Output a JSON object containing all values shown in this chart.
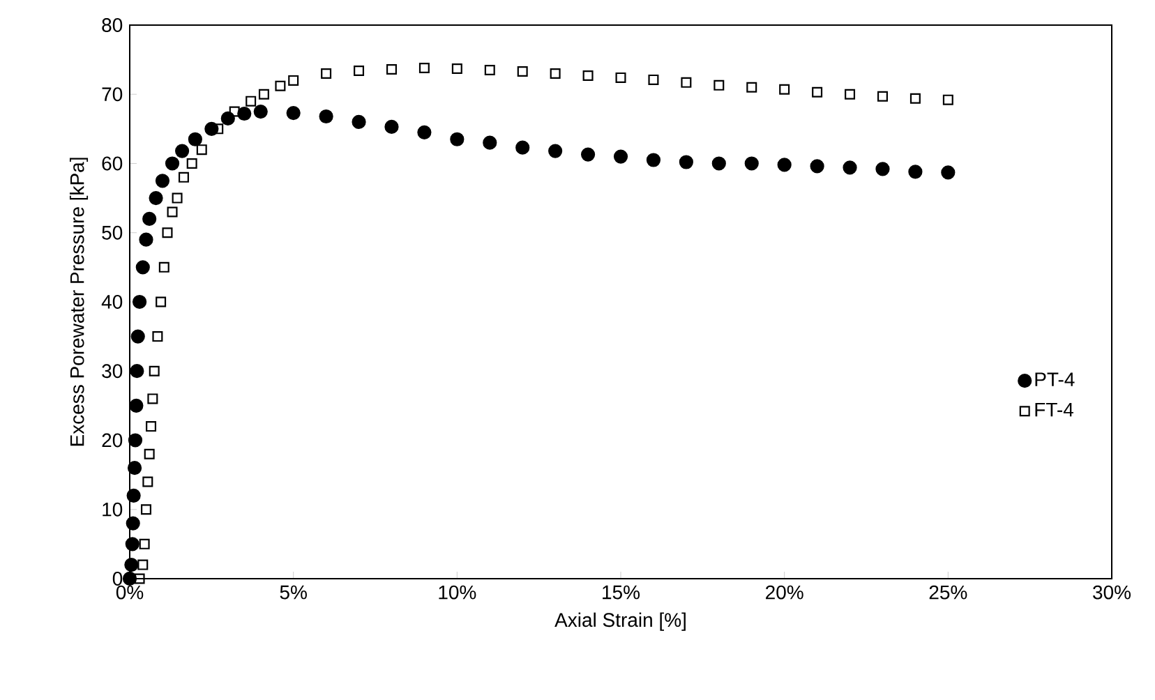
{
  "chart_data": {
    "type": "scatter",
    "xlabel": "Axial Strain [%]",
    "ylabel": "Excess Porewater Pressure [kPa]",
    "xlim": [
      0,
      30
    ],
    "ylim": [
      0,
      80
    ],
    "xticks": [
      {
        "value": 0,
        "label": "0%"
      },
      {
        "value": 5,
        "label": "5%"
      },
      {
        "value": 10,
        "label": "10%"
      },
      {
        "value": 15,
        "label": "15%"
      },
      {
        "value": 20,
        "label": "20%"
      },
      {
        "value": 25,
        "label": "25%"
      },
      {
        "value": 30,
        "label": "30%"
      }
    ],
    "yticks": [
      0,
      10,
      20,
      30,
      40,
      50,
      60,
      70,
      80
    ],
    "legend": "right",
    "grid": false,
    "series": [
      {
        "name": "PT-4",
        "color": "#000000",
        "marker": "circle",
        "x": [
          0,
          0.05,
          0.08,
          0.1,
          0.12,
          0.15,
          0.17,
          0.2,
          0.22,
          0.25,
          0.3,
          0.4,
          0.5,
          0.6,
          0.8,
          1.0,
          1.3,
          1.6,
          2.0,
          2.5,
          3.0,
          3.5,
          4.0,
          5,
          6,
          7,
          8,
          9,
          10,
          11,
          12,
          13,
          14,
          15,
          16,
          17,
          18,
          19,
          20,
          21,
          22,
          23,
          24,
          25
        ],
        "values": [
          0,
          2,
          5,
          8,
          12,
          16,
          20,
          25,
          30,
          35,
          40,
          45,
          49,
          52,
          55,
          57.5,
          60,
          61.8,
          63.5,
          65,
          66.5,
          67.2,
          67.5,
          67.3,
          66.8,
          66,
          65.3,
          64.5,
          63.5,
          63,
          62.3,
          61.8,
          61.3,
          61,
          60.5,
          60.2,
          60,
          60,
          59.8,
          59.6,
          59.4,
          59.2,
          58.8,
          58.7
        ]
      },
      {
        "name": "FT-4",
        "color": "#000000",
        "marker": "square",
        "x": [
          0.3,
          0.4,
          0.45,
          0.5,
          0.55,
          0.6,
          0.65,
          0.7,
          0.75,
          0.85,
          0.95,
          1.05,
          1.15,
          1.3,
          1.45,
          1.65,
          1.9,
          2.2,
          2.7,
          3.2,
          3.7,
          4.1,
          4.6,
          5,
          6,
          7,
          8,
          9,
          10,
          11,
          12,
          13,
          14,
          15,
          16,
          17,
          18,
          19,
          20,
          21,
          22,
          23,
          24,
          25
        ],
        "values": [
          0,
          2,
          5,
          10,
          14,
          18,
          22,
          26,
          30,
          35,
          40,
          45,
          50,
          53,
          55,
          58,
          60,
          62,
          65,
          67.5,
          69,
          70,
          71.2,
          72,
          73,
          73.4,
          73.6,
          73.8,
          73.7,
          73.5,
          73.3,
          73,
          72.7,
          72.4,
          72.1,
          71.7,
          71.3,
          71,
          70.7,
          70.3,
          70,
          69.7,
          69.4,
          69.2
        ]
      }
    ]
  }
}
